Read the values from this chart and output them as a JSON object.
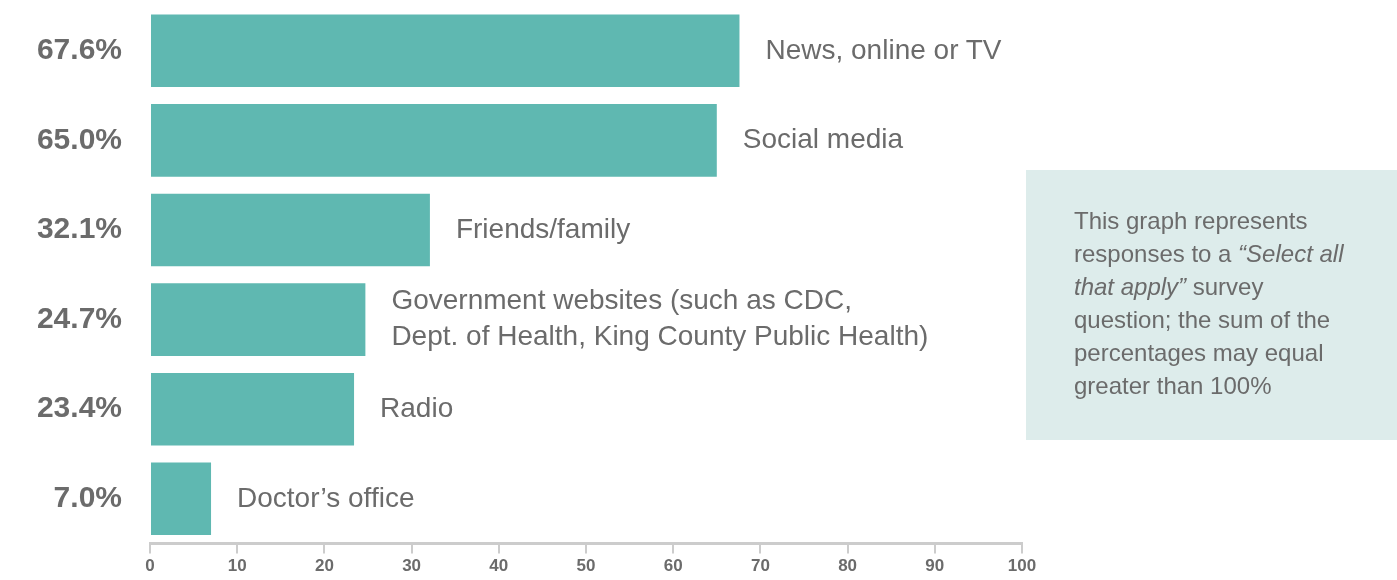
{
  "chart_data": {
    "type": "bar",
    "orientation": "horizontal",
    "categories": [
      "News, online or TV",
      "Social media",
      "Friends/family",
      "Government websites (such as CDC,\nDept. of Health, King County Public Health)",
      "Radio",
      "Doctor’s office"
    ],
    "values": [
      67.6,
      65.0,
      32.1,
      24.7,
      23.4,
      7.0
    ],
    "value_labels": [
      "67.6%",
      "65.0%",
      "32.1%",
      "24.7%",
      "23.4%",
      "7.0%"
    ],
    "color": "#5fb8b1",
    "xlim": [
      0,
      100
    ],
    "xticks": [
      0,
      10,
      20,
      30,
      40,
      50,
      60,
      70,
      80,
      90,
      100
    ],
    "grid": false,
    "legend": false,
    "annotations": [
      "This graph represents responses to a “Select all that apply” survey question; the sum of the percentages may equal greater than 100%"
    ]
  }
}
